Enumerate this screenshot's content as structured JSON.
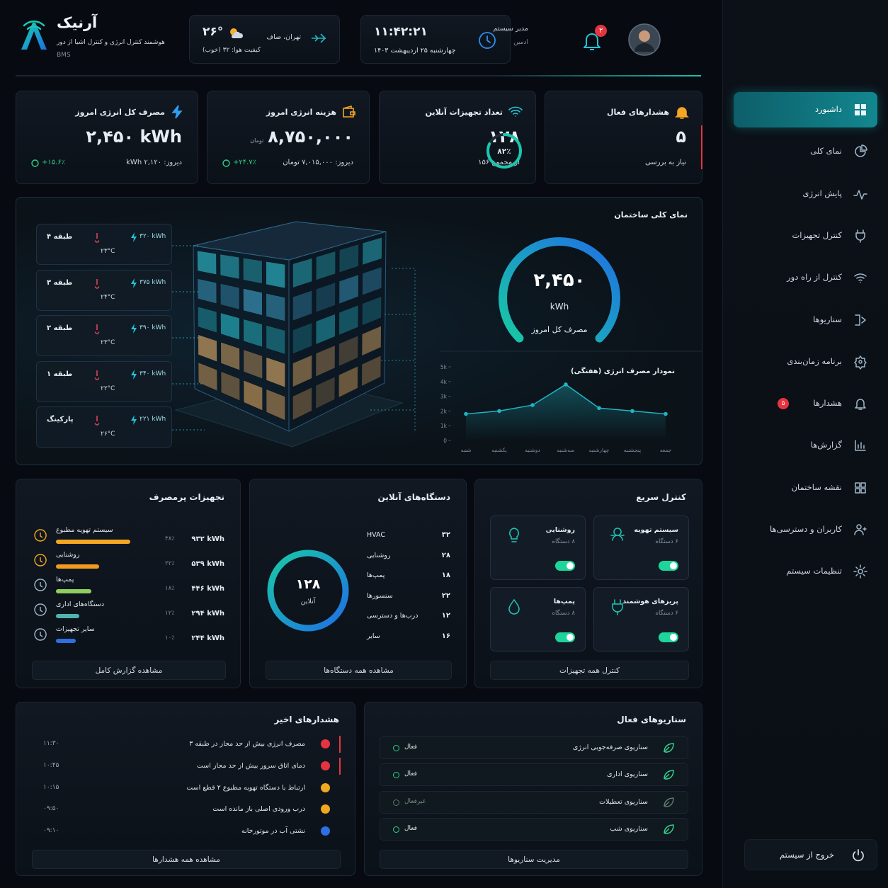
{
  "sidebar": {
    "menu": [
      "داشبورد",
      "نمای کلی",
      "پایش انرژی",
      "کنترل تجهیزات",
      "کنترل از راه دور",
      "سناریوها",
      "برنامه زمان‌بندی",
      "هشدارها",
      "گزارش‌ها",
      "نقشه ساختمان",
      "کاربران و دسترسی‌ها",
      "تنظیمات سیستم"
    ],
    "alerts_badge": "۵",
    "logout": "خروج از سیستم"
  },
  "header": {
    "brand": "آرنیک",
    "tagline": "هوشمند کنترل انرژی و کنترل اشیا از دور",
    "system": "BMS",
    "weather": {
      "temp": "۲۶°",
      "city": "تهران، صاف",
      "air": "کیفیت هوا: ۳۲ (خوب)"
    },
    "clock": {
      "time": "۱۱:۴۲:۲۱",
      "date": "چهارشنبه ۲۵ اردیبهشت ۱۴۰۳"
    },
    "notifications": "۳",
    "user": {
      "title": "مدیر سیستم",
      "role": "ادمین"
    }
  },
  "kpis": [
    {
      "title": "هشدارهای فعال",
      "value": "۵",
      "sub": "نیاز به بررسی"
    },
    {
      "title": "تعداد تجهیزات آنلاین",
      "value": "۱۲۸",
      "sub": "از مجموع ۱۵۶",
      "ring": {
        "value": 82,
        "label": "۸۲٪"
      }
    },
    {
      "title": "هزینه انرژی امروز",
      "value": "۸,۷۵۰,۰۰۰",
      "unit": "تومان",
      "change": "+۲۴.۷٪",
      "sub": "دیروز: ۷,۰۱۵,۰۰۰ تومان"
    },
    {
      "title": "مصرف کل انرژی امروز",
      "value": "۲,۴۵۰ kWh",
      "change": "+۱۵.۶٪",
      "sub": "دیروز: ۲,۱۲۰ kWh"
    }
  ],
  "building": {
    "title": "نمای کلی ساختمان",
    "floors": [
      {
        "name": "طبقه ۴",
        "temp": "۲۳°C",
        "power": "۳۲۰ kWh"
      },
      {
        "name": "طبقه ۳",
        "temp": "۲۴°C",
        "power": "۳۷۵ kWh"
      },
      {
        "name": "طبقه ۲",
        "temp": "۲۳°C",
        "power": "۳۹۰ kWh"
      },
      {
        "name": "طبقه ۱",
        "temp": "۲۲°C",
        "power": "۳۴۰ kWh"
      },
      {
        "name": "پارکینگ",
        "temp": "۲۶°C",
        "power": "۲۲۱ kWh"
      }
    ],
    "gauge": {
      "value": "۲,۴۵۰",
      "unit": "kWh",
      "label": "مصرف کل امروز"
    },
    "chart_data": {
      "type": "line",
      "title": "نمودار مصرف انرژی (هفتگی)",
      "categories": [
        "شنبه",
        "یکشنبه",
        "دوشنبه",
        "سه‌شنبه",
        "چهارشنبه",
        "پنجشنبه",
        "جمعه"
      ],
      "values": [
        1800,
        2000,
        2400,
        3800,
        2200,
        2000,
        1800
      ],
      "color": "#1fb5c4",
      "ylim": [
        0,
        5000
      ],
      "yticks": [
        0,
        {
          "value": 1000,
          "label": "1k"
        },
        {
          "value": 2000,
          "label": "2k"
        },
        {
          "value": 3000,
          "label": "3k"
        },
        {
          "value": 4000,
          "label": "4k"
        },
        {
          "value": 5000,
          "label": "5k"
        }
      ]
    }
  },
  "consumers": {
    "title": "تجهیزات پرمصرف",
    "items": [
      {
        "name": "سیستم تهویه مطبوع",
        "energy": "۹۳۲ kWh",
        "share": {
          "value": 38,
          "label": "۳۸٪"
        },
        "color": "#f5a623"
      },
      {
        "name": "روشنایی",
        "energy": "۵۳۹ kWh",
        "share": {
          "value": 22,
          "label": "۲۲٪"
        },
        "color": "#f29b1f"
      },
      {
        "name": "پمپ‌ها",
        "energy": "۴۴۶ kWh",
        "share": {
          "value": 18,
          "label": "۱۸٪"
        },
        "color": "#8fcf5d"
      },
      {
        "name": "دستگاه‌های اداری",
        "energy": "۲۹۴ kWh",
        "share": {
          "value": 12,
          "label": "۱۲٪"
        },
        "color": "#4fb3b0"
      },
      {
        "name": "سایر تجهیزات",
        "energy": "۲۴۴ kWh",
        "share": {
          "value": 10,
          "label": "۱۰٪"
        },
        "color": "#2d6fe0"
      }
    ],
    "button": "مشاهده گزارش کامل"
  },
  "online": {
    "title": "دستگاه‌های آنلاین",
    "ring": {
      "value": "۱۲۸",
      "label": "آنلاین"
    },
    "items": [
      {
        "name": "HVAC",
        "count": "۳۲"
      },
      {
        "name": "روشنایی",
        "count": "۲۸"
      },
      {
        "name": "پمپ‌ها",
        "count": "۱۸"
      },
      {
        "name": "سنسورها",
        "count": "۲۲"
      },
      {
        "name": "درب‌ها و دسترسی",
        "count": "۱۲"
      },
      {
        "name": "سایر",
        "count": "۱۶"
      }
    ],
    "button": "مشاهده همه دستگاه‌ها"
  },
  "quick": {
    "title": "کنترل سریع",
    "tiles": [
      {
        "name": "سیستم تهویه",
        "devices": "۶ دستگاه"
      },
      {
        "name": "روشنایی",
        "devices": "۸ دستگاه"
      },
      {
        "name": "پریزهای هوشمند",
        "devices": "۶ دستگاه"
      },
      {
        "name": "پمپ‌ها",
        "devices": "۸ دستگاه"
      }
    ],
    "button": "کنترل همه تجهیزات"
  },
  "alerts": {
    "title": "هشدارهای اخیر",
    "items": [
      {
        "message": "مصرف انرژی بیش از حد مجاز در طبقه ۳",
        "time": "۱۱:۳۰",
        "level": "critical"
      },
      {
        "message": "دمای اتاق سرور بیش از حد مجاز است",
        "time": "۱۰:۴۵",
        "level": "critical"
      },
      {
        "message": "ارتباط با دستگاه تهویه مطبوع ۲ قطع است",
        "time": "۱۰:۱۵",
        "level": "warning"
      },
      {
        "message": "درب ورودی اصلی باز مانده است",
        "time": "۰۹:۵۰",
        "level": "warning"
      },
      {
        "message": "نشتی آب در موتورخانه",
        "time": "۰۹:۱۰",
        "level": "info"
      }
    ],
    "button": "مشاهده همه هشدارها"
  },
  "scenarios": {
    "title": "سناریوهای فعال",
    "items": [
      {
        "name": "سناریوی صرفه‌جویی انرژی",
        "status": "فعال",
        "active": true
      },
      {
        "name": "سناریوی اداری",
        "status": "فعال",
        "active": true
      },
      {
        "name": "سناریوی تعطیلات",
        "status": "غیرفعال",
        "active": false
      },
      {
        "name": "سناریوی شب",
        "status": "فعال",
        "active": true
      }
    ],
    "button": "مدیریت سناریوها"
  }
}
